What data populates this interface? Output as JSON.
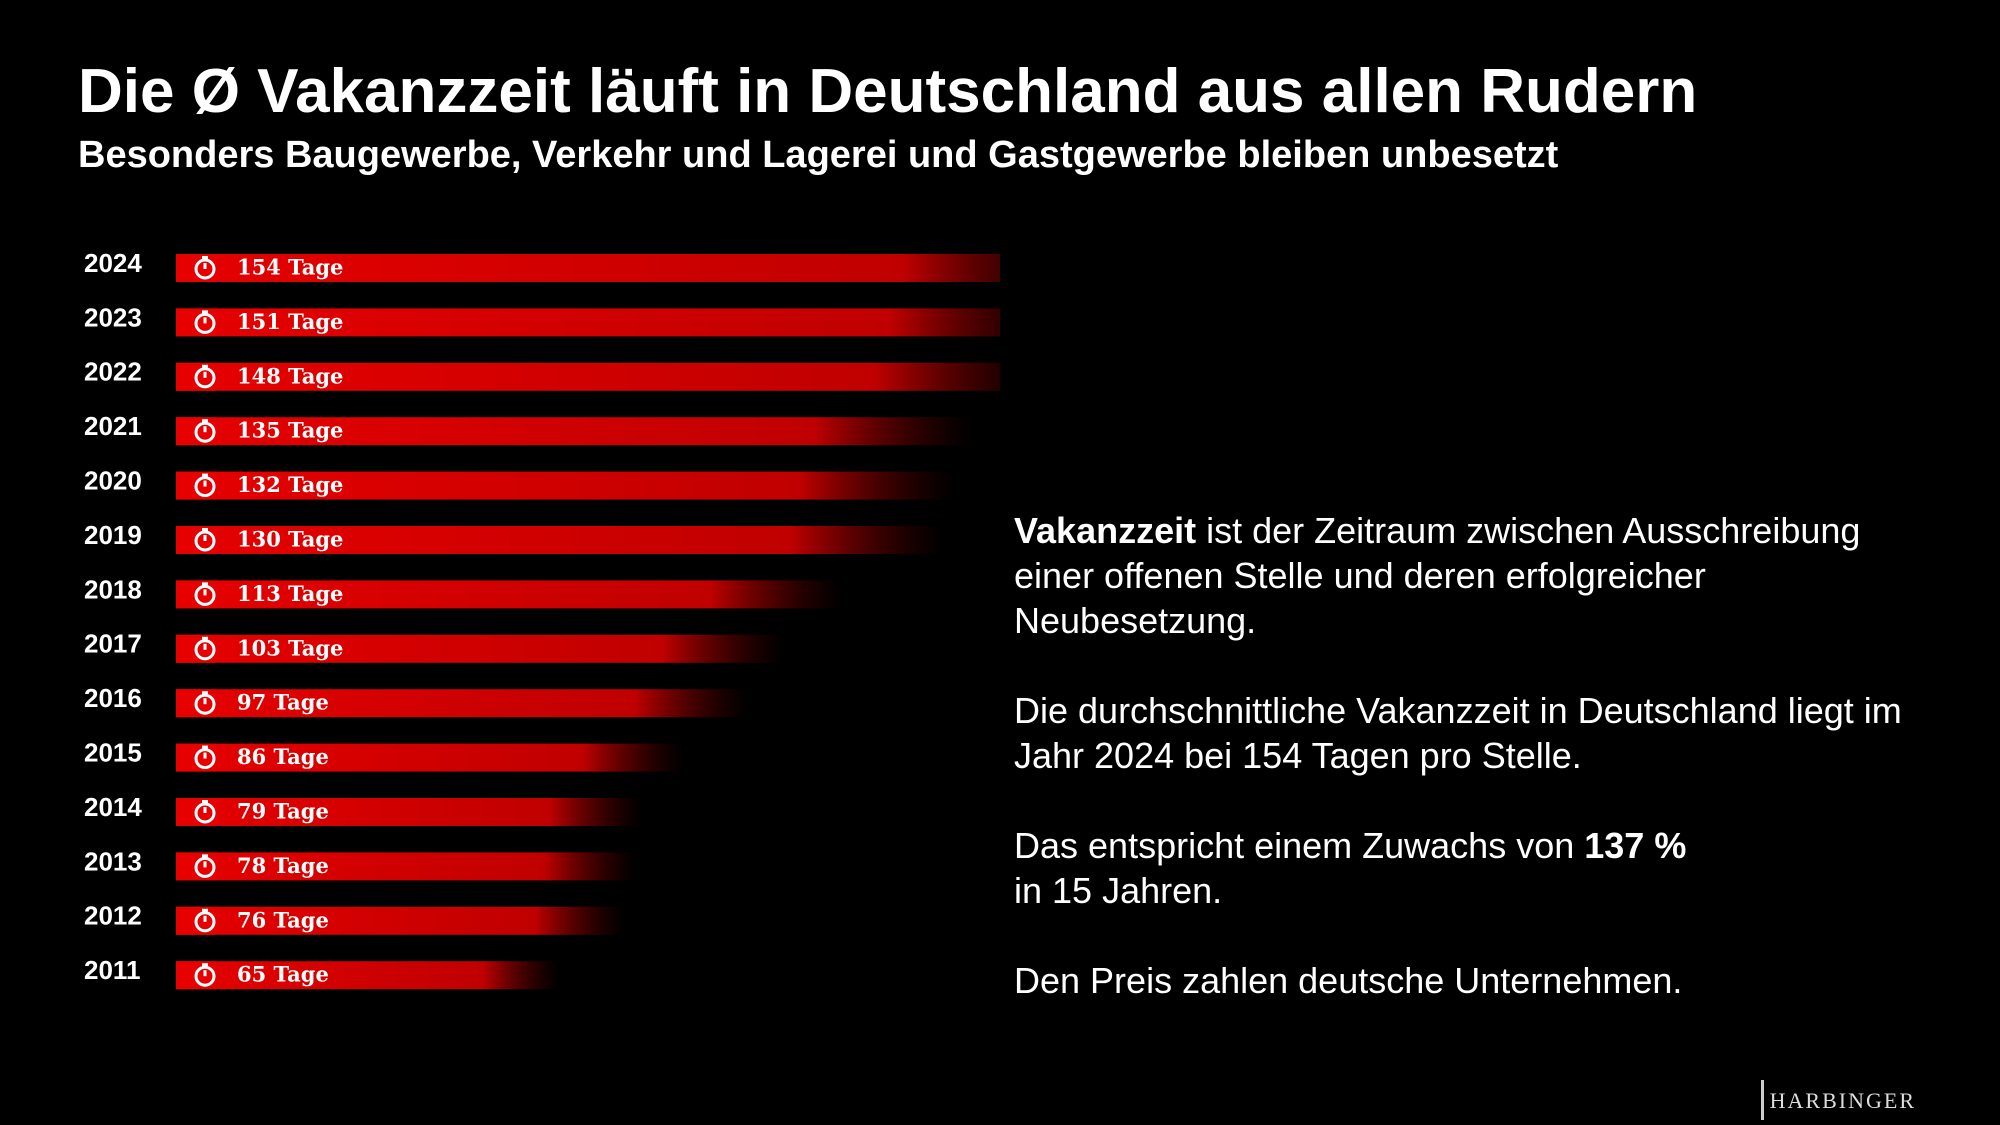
{
  "chart_data": {
    "type": "bar",
    "title": "Die Ø Vakanzzeit läuft in Deutschland aus allen Rudern",
    "subtitle": "Besonders Baugewerbe, Verkehr und Lagerei und Gastgewerbe bleiben unbesetzt",
    "categories": [
      "2024",
      "2023",
      "2022",
      "2021",
      "2020",
      "2019",
      "2018",
      "2017",
      "2016",
      "2015",
      "2014",
      "2013",
      "2012",
      "2011"
    ],
    "values": [
      154,
      151,
      148,
      135,
      132,
      130,
      113,
      103,
      97,
      86,
      79,
      78,
      76,
      65
    ],
    "value_labels": [
      "154 Tage",
      "151 Tage",
      "148 Tage",
      "135 Tage",
      "132 Tage",
      "130 Tage",
      "113 Tage",
      "103 Tage",
      "97 Tage",
      "86 Tage",
      "79 Tage",
      "78 Tage",
      "76 Tage",
      "65 Tage"
    ],
    "color": "#e60000"
  },
  "text_block": {
    "paragraphs": [
      [
        "Vakanzzeit",
        "ist der Zeitraum zwischen Ausschreibung einer offenen Stelle und deren erfolgreicher Neubesetzung."
      ],
      [
        "Die durchschnittliche Vakanzzeit in Deutschland liegt im Jahr 2024 bei 154 Tagen pro Stelle."
      ],
      [
        "Das entspricht einem Zuwachs von",
        "137 %",
        "in 15 Jahren."
      ],
      [
        "Den Preis zahlen deutsche Unternehmen."
      ]
    ]
  },
  "logo": "HARBINGER"
}
